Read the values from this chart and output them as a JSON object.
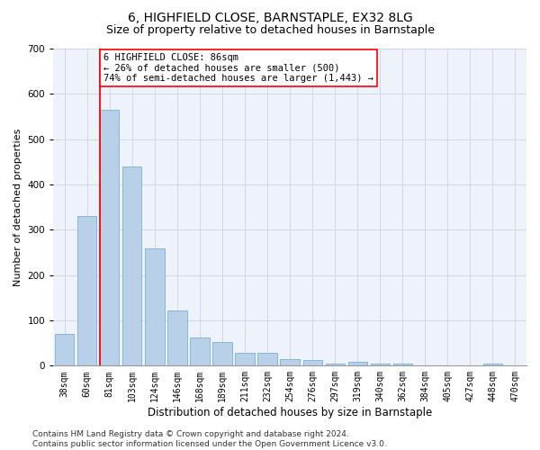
{
  "title1": "6, HIGHFIELD CLOSE, BARNSTAPLE, EX32 8LG",
  "title2": "Size of property relative to detached houses in Barnstaple",
  "xlabel": "Distribution of detached houses by size in Barnstaple",
  "ylabel": "Number of detached properties",
  "categories": [
    "38sqm",
    "60sqm",
    "81sqm",
    "103sqm",
    "124sqm",
    "146sqm",
    "168sqm",
    "189sqm",
    "211sqm",
    "232sqm",
    "254sqm",
    "276sqm",
    "297sqm",
    "319sqm",
    "340sqm",
    "362sqm",
    "384sqm",
    "405sqm",
    "427sqm",
    "448sqm",
    "470sqm"
  ],
  "values": [
    70,
    330,
    565,
    440,
    258,
    122,
    63,
    53,
    28,
    28,
    15,
    12,
    5,
    8,
    5,
    5,
    0,
    0,
    0,
    5,
    0
  ],
  "bar_color": "#b8d0e8",
  "bar_edge_color": "#7aafd4",
  "property_line_color": "red",
  "annotation_text": "6 HIGHFIELD CLOSE: 86sqm\n← 26% of detached houses are smaller (500)\n74% of semi-detached houses are larger (1,443) →",
  "annotation_box_color": "white",
  "annotation_box_edge_color": "red",
  "ylim": [
    0,
    700
  ],
  "yticks": [
    0,
    100,
    200,
    300,
    400,
    500,
    600,
    700
  ],
  "grid_color": "#d0d8e8",
  "bg_color": "#eef2fa",
  "footer_text": "Contains HM Land Registry data © Crown copyright and database right 2024.\nContains public sector information licensed under the Open Government Licence v3.0.",
  "title1_fontsize": 10,
  "title2_fontsize": 9,
  "xlabel_fontsize": 8.5,
  "ylabel_fontsize": 8,
  "annotation_fontsize": 7.5,
  "footer_fontsize": 6.5,
  "tick_fontsize": 7
}
